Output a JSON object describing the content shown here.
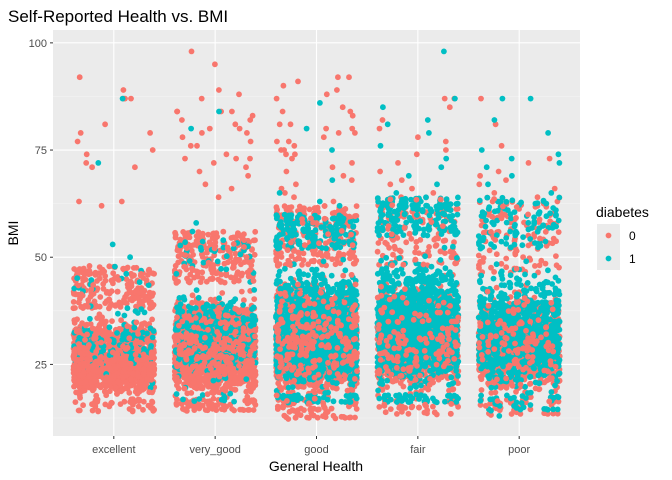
{
  "chart_data": {
    "type": "scatter",
    "title": "Self-Reported Health vs. BMI",
    "xlabel": "General Health",
    "ylabel": "BMI",
    "categories": [
      "excellent",
      "very_good",
      "good",
      "fair",
      "poor"
    ],
    "x_jitter": 0.4,
    "ylim": [
      8.3,
      103
    ],
    "yticks": [
      25,
      50,
      75,
      100
    ],
    "grid": true,
    "legend": {
      "title": "diabetes",
      "placement": "right",
      "entries": [
        {
          "label": "0",
          "color": "#F8766D"
        },
        {
          "label": "1",
          "color": "#00BFC4"
        }
      ]
    },
    "series": [
      {
        "name": "0",
        "color": "#F8766D",
        "points": [
          [
            "excellent",
            89
          ],
          [
            "excellent",
            79
          ],
          [
            "excellent",
            72
          ],
          [
            "excellent",
            71
          ],
          [
            "excellent",
            92
          ],
          [
            "excellent",
            87
          ],
          [
            "excellent",
            87
          ],
          [
            "excellent",
            79
          ],
          [
            "excellent",
            75
          ],
          [
            "excellent",
            74
          ],
          [
            "excellent",
            77
          ],
          [
            "excellent",
            71
          ],
          [
            "excellent",
            81
          ],
          [
            "excellent",
            63
          ],
          [
            "excellent",
            63
          ],
          [
            "excellent",
            62
          ],
          [
            "excellent",
            87
          ],
          [
            "very_good",
            98
          ],
          [
            "very_good",
            95
          ],
          [
            "very_good",
            89
          ],
          [
            "very_good",
            87
          ],
          [
            "very_good",
            88
          ],
          [
            "very_good",
            84
          ],
          [
            "very_good",
            84
          ],
          [
            "very_good",
            83
          ],
          [
            "very_good",
            84
          ],
          [
            "very_good",
            82
          ],
          [
            "very_good",
            81
          ],
          [
            "very_good",
            80
          ],
          [
            "very_good",
            80
          ],
          [
            "very_good",
            79
          ],
          [
            "very_good",
            79
          ],
          [
            "very_good",
            78
          ],
          [
            "very_good",
            77
          ],
          [
            "very_good",
            76
          ],
          [
            "very_good",
            74
          ],
          [
            "very_good",
            73
          ],
          [
            "very_good",
            73
          ],
          [
            "very_good",
            72
          ],
          [
            "very_good",
            71
          ],
          [
            "very_good",
            70
          ],
          [
            "very_good",
            69
          ],
          [
            "very_good",
            67
          ],
          [
            "very_good",
            66
          ],
          [
            "very_good",
            64
          ],
          [
            "very_good",
            84
          ],
          [
            "very_good",
            82
          ],
          [
            "very_good",
            76
          ],
          [
            "very_good",
            73
          ],
          [
            "good",
            91
          ],
          [
            "good",
            90
          ],
          [
            "good",
            89
          ],
          [
            "good",
            92
          ],
          [
            "good",
            92
          ],
          [
            "good",
            88
          ],
          [
            "good",
            87
          ],
          [
            "good",
            85
          ],
          [
            "good",
            84
          ],
          [
            "good",
            84
          ],
          [
            "good",
            83
          ],
          [
            "good",
            81
          ],
          [
            "good",
            81
          ],
          [
            "good",
            80
          ],
          [
            "good",
            80
          ],
          [
            "good",
            79
          ],
          [
            "good",
            79
          ],
          [
            "good",
            78
          ],
          [
            "good",
            77
          ],
          [
            "good",
            77
          ],
          [
            "good",
            76
          ],
          [
            "good",
            75
          ],
          [
            "good",
            75
          ],
          [
            "good",
            74
          ],
          [
            "good",
            74
          ],
          [
            "good",
            73
          ],
          [
            "good",
            72
          ],
          [
            "good",
            71
          ],
          [
            "good",
            70
          ],
          [
            "good",
            69
          ],
          [
            "good",
            68
          ],
          [
            "good",
            67
          ],
          [
            "good",
            66
          ],
          [
            "good",
            65
          ],
          [
            "good",
            64
          ],
          [
            "good",
            63
          ],
          [
            "fair",
            87
          ],
          [
            "fair",
            82
          ],
          [
            "fair",
            78
          ],
          [
            "fair",
            75
          ],
          [
            "fair",
            72
          ],
          [
            "fair",
            70
          ],
          [
            "fair",
            68
          ],
          [
            "fair",
            67
          ],
          [
            "fair",
            66
          ],
          [
            "fair",
            65
          ],
          [
            "fair",
            64
          ],
          [
            "fair",
            63
          ],
          [
            "fair",
            87
          ],
          [
            "fair",
            85
          ],
          [
            "fair",
            80
          ],
          [
            "fair",
            77
          ],
          [
            "fair",
            74
          ],
          [
            "poor",
            87
          ],
          [
            "poor",
            81
          ],
          [
            "poor",
            76
          ],
          [
            "poor",
            73
          ],
          [
            "poor",
            72
          ],
          [
            "poor",
            70
          ],
          [
            "poor",
            69
          ],
          [
            "poor",
            68
          ],
          [
            "poor",
            67
          ],
          [
            "poor",
            66
          ],
          [
            "poor",
            65
          ],
          [
            "poor",
            64
          ],
          [
            "poor",
            63
          ],
          [
            "poor",
            63
          ]
        ],
        "bulk": [
          {
            "category": "excellent",
            "count": 1500,
            "core": [
              17,
              38
            ],
            "tail_max": 48,
            "min": 14
          },
          {
            "category": "very_good",
            "count": 1900,
            "core": [
              17,
              44
            ],
            "tail_max": 56,
            "min": 14
          },
          {
            "category": "good",
            "count": 2200,
            "core": [
              17,
              48
            ],
            "tail_max": 62,
            "min": 12
          },
          {
            "category": "fair",
            "count": 1300,
            "core": [
              17,
              48
            ],
            "tail_max": 64,
            "min": 13
          },
          {
            "category": "poor",
            "count": 1000,
            "core": [
              17,
              46
            ],
            "tail_max": 64,
            "min": 13
          }
        ]
      },
      {
        "name": "1",
        "color": "#00BFC4",
        "points": [
          [
            "excellent",
            87
          ],
          [
            "excellent",
            72
          ],
          [
            "excellent",
            53
          ],
          [
            "excellent",
            50
          ],
          [
            "very_good",
            84
          ],
          [
            "very_good",
            80
          ],
          [
            "very_good",
            58
          ],
          [
            "very_good",
            56
          ],
          [
            "good",
            86
          ],
          [
            "good",
            80
          ],
          [
            "good",
            75
          ],
          [
            "good",
            68
          ],
          [
            "good",
            65
          ],
          [
            "good",
            63
          ],
          [
            "good",
            62
          ],
          [
            "fair",
            98
          ],
          [
            "fair",
            87
          ],
          [
            "fair",
            85
          ],
          [
            "fair",
            82
          ],
          [
            "fair",
            81
          ],
          [
            "fair",
            79
          ],
          [
            "fair",
            76
          ],
          [
            "fair",
            73
          ],
          [
            "fair",
            71
          ],
          [
            "fair",
            69
          ],
          [
            "fair",
            67
          ],
          [
            "fair",
            65
          ],
          [
            "fair",
            63
          ],
          [
            "fair",
            61
          ],
          [
            "poor",
            87
          ],
          [
            "poor",
            87
          ],
          [
            "poor",
            82
          ],
          [
            "poor",
            79
          ],
          [
            "poor",
            75
          ],
          [
            "poor",
            74
          ],
          [
            "poor",
            73
          ],
          [
            "poor",
            72
          ],
          [
            "poor",
            71
          ],
          [
            "poor",
            69
          ],
          [
            "poor",
            67
          ],
          [
            "poor",
            65
          ],
          [
            "poor",
            63
          ],
          [
            "poor",
            61
          ],
          [
            "poor",
            13
          ],
          [
            "poor",
            15
          ]
        ],
        "bulk": [
          {
            "category": "excellent",
            "count": 120,
            "core": [
              22,
              42
            ],
            "tail_max": 48,
            "min": 17
          },
          {
            "category": "very_good",
            "count": 350,
            "core": [
              20,
              46
            ],
            "tail_max": 54,
            "min": 16
          },
          {
            "category": "good",
            "count": 1400,
            "core": [
              18,
              52
            ],
            "tail_max": 60,
            "min": 16
          },
          {
            "category": "fair",
            "count": 1500,
            "core": [
              18,
              55
            ],
            "tail_max": 64,
            "min": 16
          },
          {
            "category": "poor",
            "count": 900,
            "core": [
              18,
              52
            ],
            "tail_max": 64,
            "min": 14
          }
        ]
      }
    ]
  }
}
